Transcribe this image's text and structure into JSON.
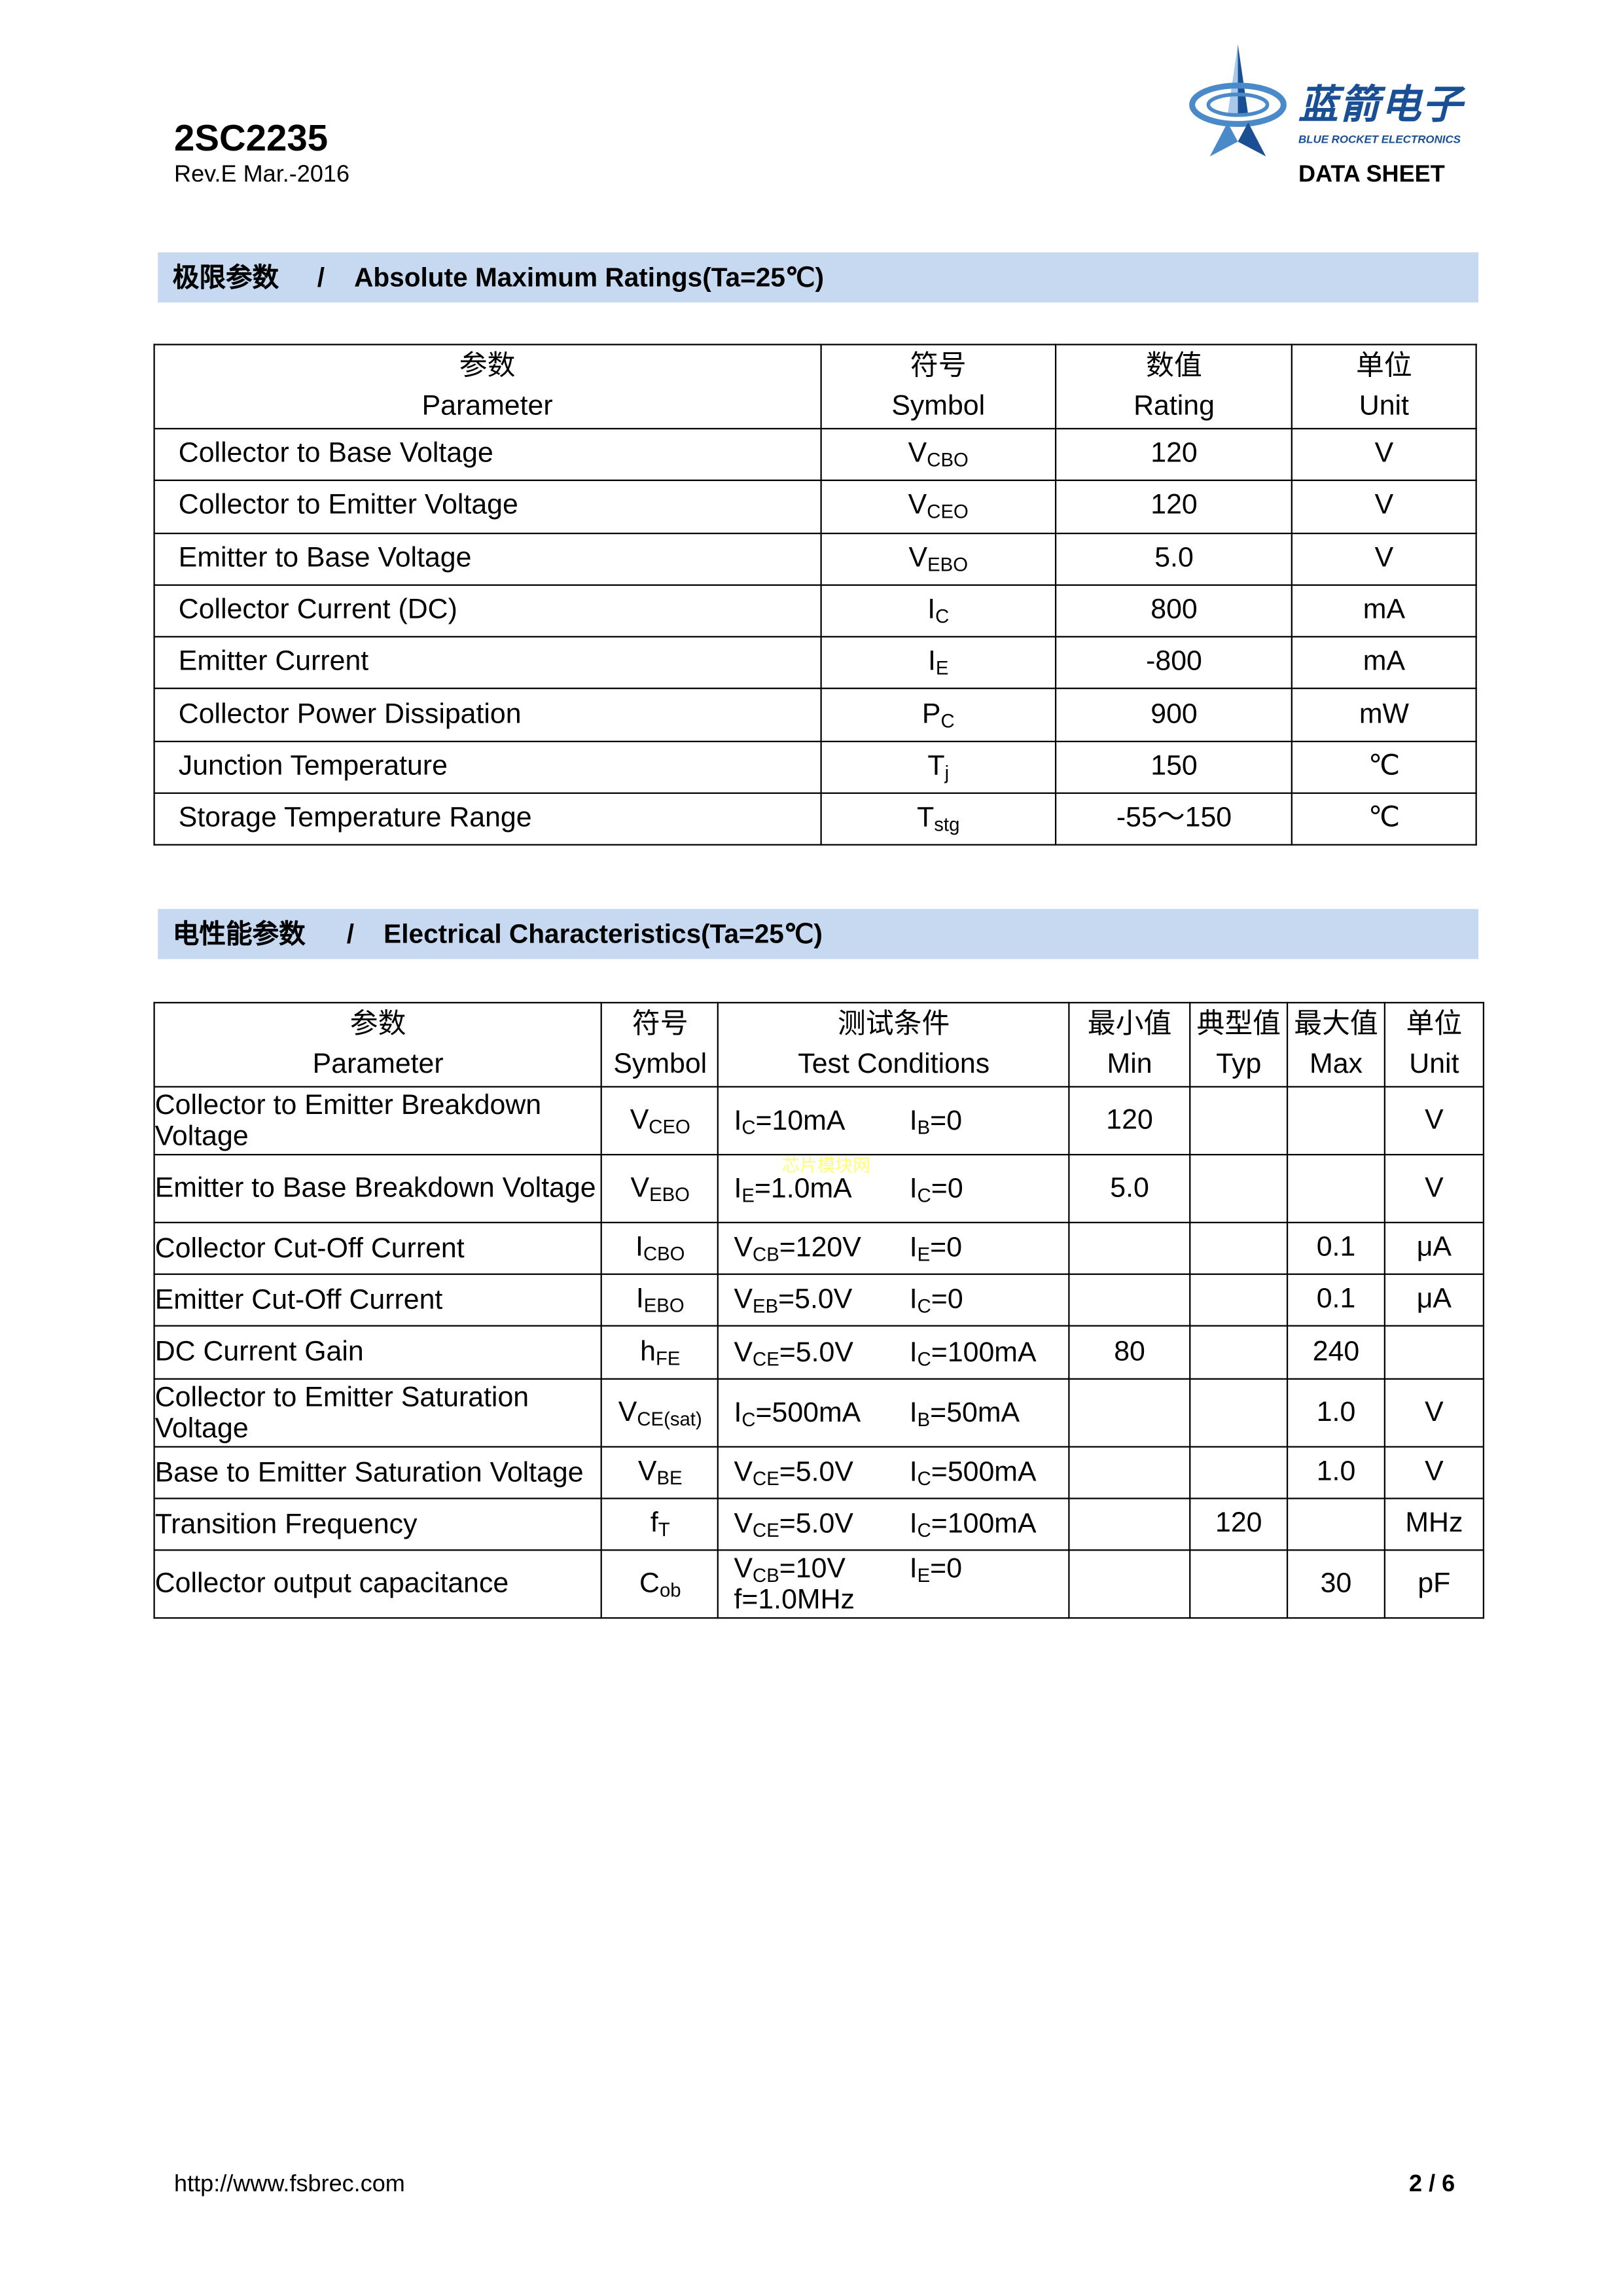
{
  "header": {
    "part_number": "2SC2235",
    "revision": "Rev.E Mar.-2016",
    "doc_type": "DATA SHEET",
    "logo": {
      "cn": "蓝箭电子",
      "en": "BLUE ROCKET ELECTRONICS",
      "colors": [
        "#1b4f93",
        "#4a8ac8",
        "#a9c8ea"
      ]
    }
  },
  "colors": {
    "section_bar": "#c6d9f1",
    "watermark": "#ffff66"
  },
  "section1": {
    "cn": "极限参数",
    "sep": "/",
    "en": "Absolute Maximum Ratings(Ta=25℃)"
  },
  "table1": {
    "headers": [
      {
        "cn": "参数",
        "en": "Parameter"
      },
      {
        "cn": "符号",
        "en": "Symbol"
      },
      {
        "cn": "数值",
        "en": "Rating"
      },
      {
        "cn": "单位",
        "en": "Unit"
      }
    ],
    "rows": [
      {
        "param": "Collector to Base Voltage",
        "sym": "V",
        "sub": "CBO",
        "rating": "120",
        "unit": "V"
      },
      {
        "param": "Collector to Emitter Voltage",
        "sym": "V",
        "sub": "CEO",
        "rating": "120",
        "unit": "V"
      },
      {
        "param": "Emitter to Base Voltage",
        "sym": "V",
        "sub": "EBO",
        "rating": "5.0",
        "unit": "V"
      },
      {
        "param": "Collector Current (DC)",
        "sym": "I",
        "sub": "C",
        "rating": "800",
        "unit": "mA"
      },
      {
        "param": "Emitter Current",
        "sym": "I",
        "sub": "E",
        "rating": "-800",
        "unit": "mA"
      },
      {
        "param": "Collector Power Dissipation",
        "sym": "P",
        "sub": "C",
        "rating": "900",
        "unit": "mW"
      },
      {
        "param": "Junction Temperature",
        "sym": "T",
        "sub": "j",
        "rating": "150",
        "unit": "℃"
      },
      {
        "param": "Storage Temperature Range",
        "sym": "T",
        "sub": "stg",
        "rating": "-55～150",
        "unit": "℃"
      }
    ]
  },
  "section2": {
    "cn": "电性能参数",
    "sep": "/",
    "en": "Electrical Characteristics(Ta=25℃)"
  },
  "table2": {
    "headers": [
      {
        "cn": "参数",
        "en": "Parameter"
      },
      {
        "cn": "符号",
        "en": "Symbol"
      },
      {
        "cn": "测试条件",
        "en": "Test Conditions"
      },
      {
        "cn": "最小值",
        "en": "Min"
      },
      {
        "cn": "典型值",
        "en": "Typ"
      },
      {
        "cn": "最大值",
        "en": "Max"
      },
      {
        "cn": "单位",
        "en": "Unit"
      }
    ],
    "rows": [
      {
        "param": "Collector to Emitter Breakdown Voltage",
        "sym": "V",
        "sub": "CEO",
        "c1": [
          "I",
          "C",
          "=10mA"
        ],
        "c2": [
          "I",
          "B",
          "=0"
        ],
        "min": "120",
        "typ": "",
        "max": "",
        "unit": "V"
      },
      {
        "param": "Emitter to Base Breakdown Voltage",
        "sym": "V",
        "sub": "EBO",
        "c1": [
          "I",
          "E",
          "=1.0mA"
        ],
        "c2": [
          "I",
          "C",
          "=0"
        ],
        "min": "5.0",
        "typ": "",
        "max": "",
        "unit": "V"
      },
      {
        "param": "Collector Cut-Off Current",
        "sym": "I",
        "sub": "CBO",
        "c1": [
          "V",
          "CB",
          "=120V"
        ],
        "c2": [
          "I",
          "E",
          "=0"
        ],
        "min": "",
        "typ": "",
        "max": "0.1",
        "unit": "μA"
      },
      {
        "param": "Emitter Cut-Off Current",
        "sym": "I",
        "sub": "EBO",
        "c1": [
          "V",
          "EB",
          "=5.0V"
        ],
        "c2": [
          "I",
          "C",
          "=0"
        ],
        "min": "",
        "typ": "",
        "max": "0.1",
        "unit": "μA"
      },
      {
        "param": "DC Current Gain",
        "sym": "h",
        "sub": "FE",
        "c1": [
          "V",
          "CE",
          "=5.0V"
        ],
        "c2": [
          "I",
          "C",
          "=100mA"
        ],
        "min": "80",
        "typ": "",
        "max": "240",
        "unit": ""
      },
      {
        "param": "Collector to Emitter Saturation Voltage",
        "sym": "V",
        "sub": "CE(sat)",
        "c1": [
          "I",
          "C",
          "=500mA"
        ],
        "c2": [
          "I",
          "B",
          "=50mA"
        ],
        "min": "",
        "typ": "",
        "max": "1.0",
        "unit": "V"
      },
      {
        "param": "Base to Emitter Saturation Voltage",
        "sym": "V",
        "sub": "BE",
        "c1": [
          "V",
          "CE",
          "=5.0V"
        ],
        "c2": [
          "I",
          "C",
          "=500mA"
        ],
        "min": "",
        "typ": "",
        "max": "1.0",
        "unit": "V"
      },
      {
        "param": "Transition Frequency",
        "sym": "f",
        "sub": "T",
        "c1": [
          "V",
          "CE",
          "=5.0V"
        ],
        "c2": [
          "I",
          "C",
          "=100mA"
        ],
        "min": "",
        "typ": "120",
        "max": "",
        "unit": "MHz"
      },
      {
        "param": "Collector output capacitance",
        "sym": "C",
        "sub": "ob",
        "c1": [
          "V",
          "CB",
          "=10V"
        ],
        "c2": [
          "I",
          "E",
          "=0"
        ],
        "c3": "f=1.0MHz",
        "min": "",
        "typ": "",
        "max": "30",
        "unit": "pF"
      }
    ]
  },
  "watermark": "芯片模块网",
  "footer": {
    "url": "http://www.fsbrec.com",
    "page": "2 / 6"
  }
}
